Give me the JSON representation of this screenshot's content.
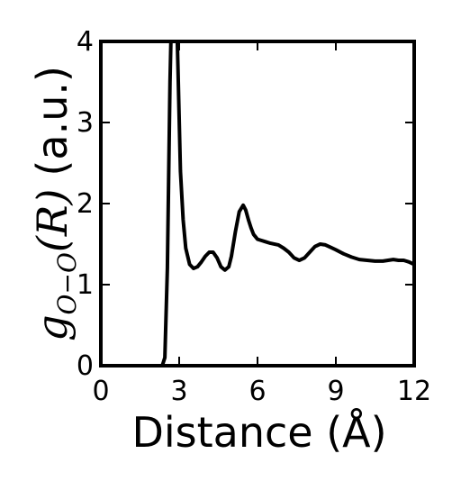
{
  "chart_data": {
    "type": "line",
    "xlabel": "Distance (Å)",
    "ylabel": {
      "math_g": "g",
      "math_sub": "O−O",
      "math_arg": "(R)",
      "units": "(a.u.)"
    },
    "xlim": [
      0,
      12
    ],
    "ylim": [
      0,
      4
    ],
    "xticks": [
      0,
      3,
      6,
      9,
      12
    ],
    "yticks": [
      0,
      1,
      2,
      3,
      4
    ],
    "xtick_labels": [
      "0",
      "3",
      "6",
      "9",
      "12"
    ],
    "ytick_labels": [
      "0",
      "1",
      "2",
      "3",
      "4"
    ],
    "grid": false,
    "line_color": "#000000",
    "series": [
      {
        "x": [
          0,
          2.35,
          2.45,
          2.55,
          2.65,
          2.75,
          2.85,
          2.95,
          3.05,
          3.15,
          3.25,
          3.4,
          3.55,
          3.7,
          3.85,
          4.0,
          4.15,
          4.3,
          4.45,
          4.6,
          4.75,
          4.9,
          5.0,
          5.15,
          5.3,
          5.45,
          5.55,
          5.65,
          5.75,
          5.85,
          6.0,
          6.1,
          6.3,
          6.5,
          6.8,
          7.0,
          7.2,
          7.4,
          7.6,
          7.8,
          8.0,
          8.2,
          8.4,
          8.6,
          8.8,
          9.0,
          9.3,
          9.6,
          9.9,
          10.2,
          10.5,
          10.8,
          11.0,
          11.2,
          11.4,
          11.6,
          11.8,
          12.0
        ],
        "y": [
          0,
          0,
          0.1,
          1.2,
          3.5,
          5.0,
          5.0,
          3.7,
          2.4,
          1.8,
          1.45,
          1.25,
          1.2,
          1.22,
          1.28,
          1.35,
          1.4,
          1.4,
          1.33,
          1.22,
          1.18,
          1.22,
          1.35,
          1.65,
          1.9,
          1.98,
          1.92,
          1.8,
          1.7,
          1.62,
          1.56,
          1.55,
          1.53,
          1.51,
          1.49,
          1.45,
          1.4,
          1.33,
          1.3,
          1.33,
          1.4,
          1.47,
          1.5,
          1.49,
          1.46,
          1.43,
          1.38,
          1.34,
          1.31,
          1.3,
          1.29,
          1.29,
          1.3,
          1.31,
          1.3,
          1.3,
          1.28,
          1.25
        ]
      }
    ]
  }
}
